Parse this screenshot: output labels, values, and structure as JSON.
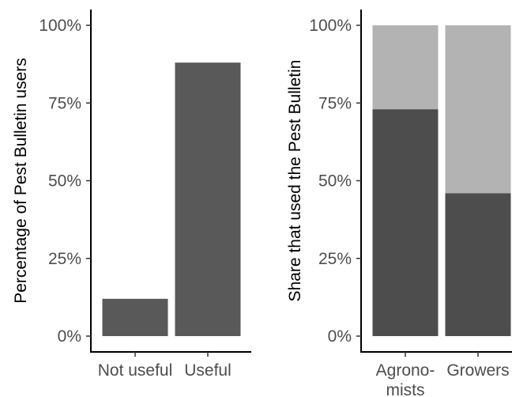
{
  "chart_data": [
    {
      "type": "bar",
      "ylabel": "Percentage of Pest Bulletin users",
      "xlabel": "",
      "categories": [
        "Not useful",
        "Useful"
      ],
      "values": [
        12,
        88
      ],
      "ylim": [
        0,
        100
      ],
      "yticks": [
        "0%",
        "25%",
        "50%",
        "75%",
        "100%"
      ],
      "ytick_values": [
        0,
        25,
        50,
        75,
        100
      ],
      "grid": false,
      "colors": {
        "bar": "#595959"
      }
    },
    {
      "type": "bar",
      "stacked": true,
      "ylabel": "Share that used the Pest Bulletin",
      "xlabel": "",
      "categories": [
        [
          "Agrono-",
          "mists"
        ],
        [
          "Growers"
        ]
      ],
      "series": [
        {
          "values": [
            73,
            46
          ]
        },
        {
          "values": [
            27,
            54
          ]
        }
      ],
      "ylim": [
        0,
        100
      ],
      "yticks": [
        "0%",
        "25%",
        "50%",
        "75%",
        "100%"
      ],
      "ytick_values": [
        0,
        25,
        50,
        75,
        100
      ],
      "grid": false,
      "colors": {
        "series": [
          "#4d4d4d",
          "#b3b3b3"
        ]
      }
    }
  ]
}
